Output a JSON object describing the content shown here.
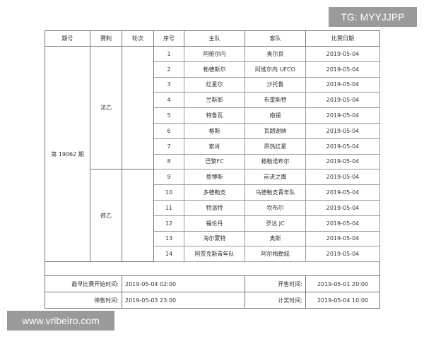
{
  "headers": [
    "期号",
    "赛制",
    "轮次",
    "序号",
    "主队",
    "客队",
    "比赛日期"
  ],
  "issue": "第 19062 期",
  "groups": [
    {
      "name": "法乙",
      "round": ""
    },
    {
      "name": "荷乙",
      "round": ""
    }
  ],
  "rows": [
    {
      "no": "1",
      "home": "阿维尔内",
      "away": "奥尔良",
      "date": "2019-05-04"
    },
    {
      "no": "2",
      "home": "勒德斯尔",
      "away": "阿维尔内 UFCO",
      "date": "2019-05-04"
    },
    {
      "no": "3",
      "home": "红星尔",
      "away": "沙托鲁",
      "date": "2019-05-04"
    },
    {
      "no": "4",
      "home": "兰斯耶",
      "away": "布雷斯特",
      "date": "2019-05-04"
    },
    {
      "no": "5",
      "home": "特鲁瓦",
      "away": "南锡",
      "date": "2019-05-04"
    },
    {
      "no": "6",
      "home": "格斯",
      "away": "瓦朗谢纳",
      "date": "2019-05-04"
    },
    {
      "no": "7",
      "home": "索肖",
      "away": "昂热红星",
      "date": "2019-05-04"
    },
    {
      "no": "8",
      "home": "巴黎FC",
      "away": "格勒诺布尔",
      "date": "2019-05-04"
    },
    {
      "no": "9",
      "home": "登博斯",
      "away": "前进之鹰",
      "date": "2019-05-04"
    },
    {
      "no": "10",
      "home": "多德勒支",
      "away": "乌德勒支青年队",
      "date": "2019-05-04"
    },
    {
      "no": "11",
      "home": "特温特",
      "away": "坎布尔",
      "date": "2019-05-04"
    },
    {
      "no": "12",
      "home": "福伦丹",
      "away": "罗达 JC",
      "date": "2019-05-04"
    },
    {
      "no": "13",
      "home": "海尔蒙特",
      "away": "奥斯",
      "date": "2019-05-04"
    },
    {
      "no": "14",
      "home": "阿贾克斯青年队",
      "away": "阿尔梅勒城",
      "date": "2019-05-04"
    }
  ],
  "footer": {
    "first_start_label": "最早比赛开始时间:",
    "first_start_value": "2019-05-04 02:00",
    "open_label": "开售时间:",
    "open_value": "2019-05-01 20:00",
    "stop_label": "停售时间:",
    "stop_value": "2019-05-03 23:00",
    "calc_label": "计奖时间:",
    "calc_value": "2019-05-04 10:00"
  },
  "watermarks": {
    "tg": "TG: MYYJJPP",
    "site": "www.vribeiro.com"
  }
}
